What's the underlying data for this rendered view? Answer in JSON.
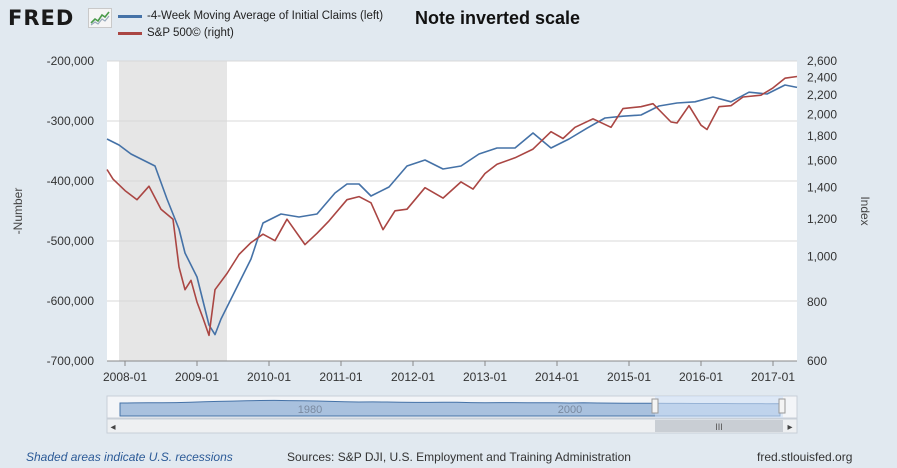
{
  "header": {
    "logo_text": "FRED",
    "logo_icon": "sparkline-chart-icon",
    "note": "Note inverted scale"
  },
  "footer": {
    "recession_note": "Shaded areas indicate U.S. recessions",
    "sources": "Sources: S&P DJI, U.S. Employment and Training Administration",
    "site": "fred.stlouisfed.org"
  },
  "navigator": {
    "year_labels": [
      "1980",
      "2000"
    ],
    "scroll_grip": "III",
    "left_arrow": "◂",
    "right_arrow": "▸"
  },
  "colors": {
    "series_claims": "#4572a7",
    "series_sp500": "#aa4643",
    "recession_shade": "#e6e6e6",
    "background": "#e1e9f0",
    "plot_background": "#ffffff"
  },
  "chart_data": {
    "type": "line",
    "title": "",
    "xlabel": "",
    "ylabel_left": "-Number",
    "ylabel_right": "Index",
    "x_range": [
      "2007-10",
      "2017-05"
    ],
    "x_ticks": [
      "2008-01",
      "2009-01",
      "2010-01",
      "2011-01",
      "2012-01",
      "2013-01",
      "2014-01",
      "2015-01",
      "2016-01",
      "2017-01"
    ],
    "y_left_ticks": [
      -200000,
      -300000,
      -400000,
      -500000,
      -600000,
      -700000
    ],
    "y_left_tick_labels": [
      "-200,000",
      "-300,000",
      "-400,000",
      "-500,000",
      "-600,000",
      "-700,000"
    ],
    "y_left_range": [
      -700000,
      -200000
    ],
    "y_right_scale": "log",
    "y_right_ticks": [
      600,
      800,
      1000,
      1200,
      1400,
      1600,
      1800,
      2000,
      2200,
      2400,
      2600
    ],
    "y_right_tick_labels": [
      "600",
      "800",
      "1,000",
      "1,200",
      "1,400",
      "1,600",
      "1,800",
      "2,000",
      "2,200",
      "2,400",
      "2,600"
    ],
    "y_right_range": [
      600,
      2600
    ],
    "grid": true,
    "legend_position": "top-left",
    "recessions": [
      {
        "start": "2007-12",
        "end": "2009-06"
      }
    ],
    "series": [
      {
        "name": "-4-Week Moving Average of Initial Claims (left)",
        "axis": "left",
        "x": [
          "2007-10",
          "2007-12",
          "2008-02",
          "2008-04",
          "2008-06",
          "2008-08",
          "2008-10",
          "2008-11",
          "2009-01",
          "2009-02",
          "2009-03",
          "2009-04",
          "2009-05",
          "2009-06",
          "2009-08",
          "2009-10",
          "2009-12",
          "2010-03",
          "2010-06",
          "2010-09",
          "2010-12",
          "2011-02",
          "2011-04",
          "2011-06",
          "2011-09",
          "2011-12",
          "2012-03",
          "2012-06",
          "2012-09",
          "2012-12",
          "2013-03",
          "2013-06",
          "2013-09",
          "2013-12",
          "2014-03",
          "2014-06",
          "2014-09",
          "2014-12",
          "2015-03",
          "2015-06",
          "2015-09",
          "2015-12",
          "2016-03",
          "2016-06",
          "2016-09",
          "2016-12",
          "2017-03",
          "2017-05"
        ],
        "values": [
          -330000,
          -340000,
          -355000,
          -365000,
          -375000,
          -430000,
          -480000,
          -520000,
          -560000,
          -600000,
          -640000,
          -656000,
          -630000,
          -610000,
          -570000,
          -530000,
          -470000,
          -455000,
          -460000,
          -455000,
          -420000,
          -405000,
          -405000,
          -425000,
          -410000,
          -375000,
          -365000,
          -380000,
          -375000,
          -355000,
          -345000,
          -345000,
          -320000,
          -345000,
          -330000,
          -312000,
          -295000,
          -292000,
          -290000,
          -275000,
          -270000,
          -268000,
          -260000,
          -268000,
          -252000,
          -255000,
          -240000,
          -244000
        ]
      },
      {
        "name": "S&P 500© (right)",
        "axis": "right",
        "x": [
          "2007-10",
          "2007-11",
          "2008-01",
          "2008-03",
          "2008-05",
          "2008-07",
          "2008-09",
          "2008-10",
          "2008-11",
          "2008-12",
          "2009-01",
          "2009-02",
          "2009-03",
          "2009-04",
          "2009-06",
          "2009-08",
          "2009-10",
          "2009-12",
          "2010-02",
          "2010-04",
          "2010-07",
          "2010-09",
          "2010-11",
          "2011-02",
          "2011-04",
          "2011-06",
          "2011-08",
          "2011-10",
          "2011-12",
          "2012-03",
          "2012-06",
          "2012-09",
          "2012-11",
          "2013-01",
          "2013-03",
          "2013-06",
          "2013-09",
          "2013-12",
          "2014-02",
          "2014-04",
          "2014-07",
          "2014-10",
          "2014-12",
          "2015-03",
          "2015-05",
          "2015-08",
          "2015-09",
          "2015-11",
          "2016-01",
          "2016-02",
          "2016-04",
          "2016-06",
          "2016-08",
          "2016-11",
          "2017-01",
          "2017-03",
          "2017-05"
        ],
        "values": [
          1530,
          1460,
          1380,
          1320,
          1410,
          1260,
          1200,
          950,
          850,
          890,
          800,
          740,
          680,
          850,
          920,
          1010,
          1070,
          1115,
          1080,
          1200,
          1060,
          1120,
          1190,
          1320,
          1340,
          1300,
          1140,
          1250,
          1260,
          1400,
          1330,
          1440,
          1390,
          1500,
          1570,
          1620,
          1690,
          1840,
          1780,
          1880,
          1960,
          1880,
          2060,
          2080,
          2110,
          1930,
          1920,
          2090,
          1900,
          1860,
          2080,
          2090,
          2180,
          2200,
          2280,
          2390,
          2410
        ]
      }
    ]
  }
}
